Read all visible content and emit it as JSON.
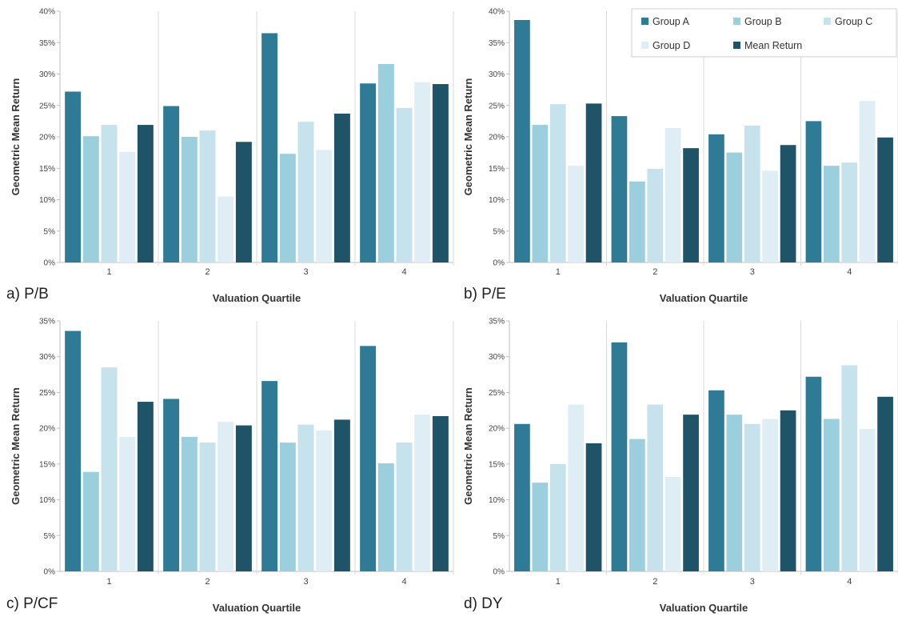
{
  "colors": {
    "group_a": "#2f7a94",
    "group_b": "#9ccfde",
    "group_c": "#c6e2ec",
    "group_d": "#dfeef4",
    "mean_return": "#1f5368",
    "grid": "#d9d9d9",
    "axis": "#bfbfbf"
  },
  "legend": {
    "items": [
      {
        "label": "Group A",
        "color_key": "group_a"
      },
      {
        "label": "Group B",
        "color_key": "group_b"
      },
      {
        "label": "Group C",
        "color_key": "group_c"
      },
      {
        "label": "Group D",
        "color_key": "group_d"
      },
      {
        "label": "Mean Return",
        "color_key": "mean_return"
      }
    ]
  },
  "chart_data": [
    {
      "type": "bar",
      "panel_label": "a) P/B",
      "xlabel": "Valuation Quartile",
      "ylabel": "Geometric Mean Return",
      "categories": [
        "1",
        "2",
        "3",
        "4"
      ],
      "ylim": [
        0,
        40
      ],
      "yticks": [
        "0%",
        "5%",
        "10%",
        "15%",
        "20%",
        "25%",
        "30%",
        "35%",
        "40%"
      ],
      "grid": "vertical separators between quartiles",
      "series": [
        {
          "name": "Group A",
          "values": [
            27.2,
            24.9,
            36.5,
            28.5
          ]
        },
        {
          "name": "Group B",
          "values": [
            20.1,
            20.0,
            17.3,
            31.6
          ]
        },
        {
          "name": "Group C",
          "values": [
            21.9,
            21.0,
            22.4,
            24.6
          ]
        },
        {
          "name": "Group D",
          "values": [
            17.6,
            10.5,
            17.9,
            28.7
          ]
        },
        {
          "name": "Mean Return",
          "values": [
            21.9,
            19.2,
            23.7,
            28.4
          ]
        }
      ]
    },
    {
      "type": "bar",
      "panel_label": "b) P/E",
      "xlabel": "Valuation Quartile",
      "ylabel": "Geometric Mean Return",
      "categories": [
        "1",
        "2",
        "3",
        "4"
      ],
      "ylim": [
        0,
        40
      ],
      "yticks": [
        "0%",
        "5%",
        "10%",
        "15%",
        "20%",
        "25%",
        "30%",
        "35%",
        "40%"
      ],
      "grid": "vertical separators between quartiles",
      "legend_position": "top-right",
      "series": [
        {
          "name": "Group A",
          "values": [
            38.6,
            23.3,
            20.4,
            22.5
          ]
        },
        {
          "name": "Group B",
          "values": [
            21.9,
            12.9,
            17.5,
            15.4
          ]
        },
        {
          "name": "Group C",
          "values": [
            25.2,
            14.9,
            21.8,
            15.9
          ]
        },
        {
          "name": "Group D",
          "values": [
            15.4,
            21.4,
            14.6,
            25.7
          ]
        },
        {
          "name": "Mean Return",
          "values": [
            25.3,
            18.2,
            18.7,
            19.9
          ]
        }
      ]
    },
    {
      "type": "bar",
      "panel_label": "c) P/CF",
      "xlabel": "Valuation Quartile",
      "ylabel": "Geometric Mean Return",
      "categories": [
        "1",
        "2",
        "3",
        "4"
      ],
      "ylim": [
        0,
        35
      ],
      "yticks": [
        "0%",
        "5%",
        "10%",
        "15%",
        "20%",
        "25%",
        "30%",
        "35%"
      ],
      "grid": "vertical separators between quartiles",
      "series": [
        {
          "name": "Group A",
          "values": [
            33.6,
            24.1,
            26.6,
            31.5
          ]
        },
        {
          "name": "Group B",
          "values": [
            13.9,
            18.8,
            18.0,
            15.1
          ]
        },
        {
          "name": "Group C",
          "values": [
            28.5,
            18.0,
            20.5,
            18.0
          ]
        },
        {
          "name": "Group D",
          "values": [
            18.8,
            20.9,
            19.7,
            21.9
          ]
        },
        {
          "name": "Mean Return",
          "values": [
            23.7,
            20.4,
            21.2,
            21.7
          ]
        }
      ]
    },
    {
      "type": "bar",
      "panel_label": "d) DY",
      "xlabel": "Valuation Quartile",
      "ylabel": "Geometric Mean Return",
      "categories": [
        "1",
        "2",
        "3",
        "4"
      ],
      "ylim": [
        0,
        35
      ],
      "yticks": [
        "0%",
        "5%",
        "10%",
        "15%",
        "20%",
        "25%",
        "30%",
        "35%"
      ],
      "grid": "vertical separators between quartiles",
      "series": [
        {
          "name": "Group A",
          "values": [
            20.6,
            32.0,
            25.3,
            27.2
          ]
        },
        {
          "name": "Group B",
          "values": [
            12.4,
            18.5,
            21.9,
            21.3
          ]
        },
        {
          "name": "Group C",
          "values": [
            15.0,
            23.3,
            20.6,
            28.8
          ]
        },
        {
          "name": "Group D",
          "values": [
            23.3,
            13.2,
            21.3,
            19.9
          ]
        },
        {
          "name": "Mean Return",
          "values": [
            17.9,
            21.9,
            22.5,
            24.4
          ]
        }
      ]
    }
  ]
}
